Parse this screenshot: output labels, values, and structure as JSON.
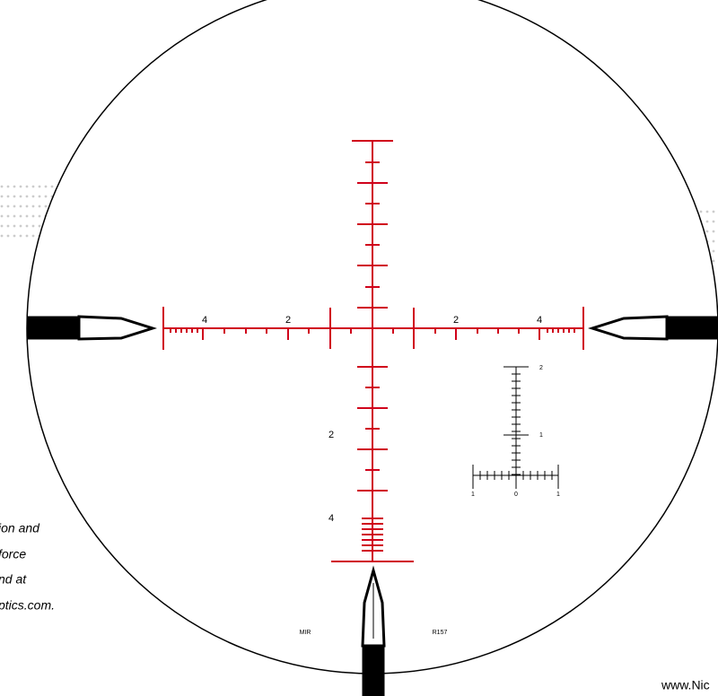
{
  "reticle": {
    "horizontal_labels": [
      "4",
      "2",
      "2",
      "4"
    ],
    "vertical_labels": [
      "2",
      "4"
    ],
    "inset_labels": {
      "vertical": [
        "2",
        "1"
      ],
      "horizontal": [
        "1",
        "0",
        "1"
      ]
    },
    "model": "MIR",
    "code": "R157"
  },
  "side_text": [
    "ion and",
    "force",
    "nd at",
    "ptics.com."
  ],
  "footer": "www.Nic"
}
